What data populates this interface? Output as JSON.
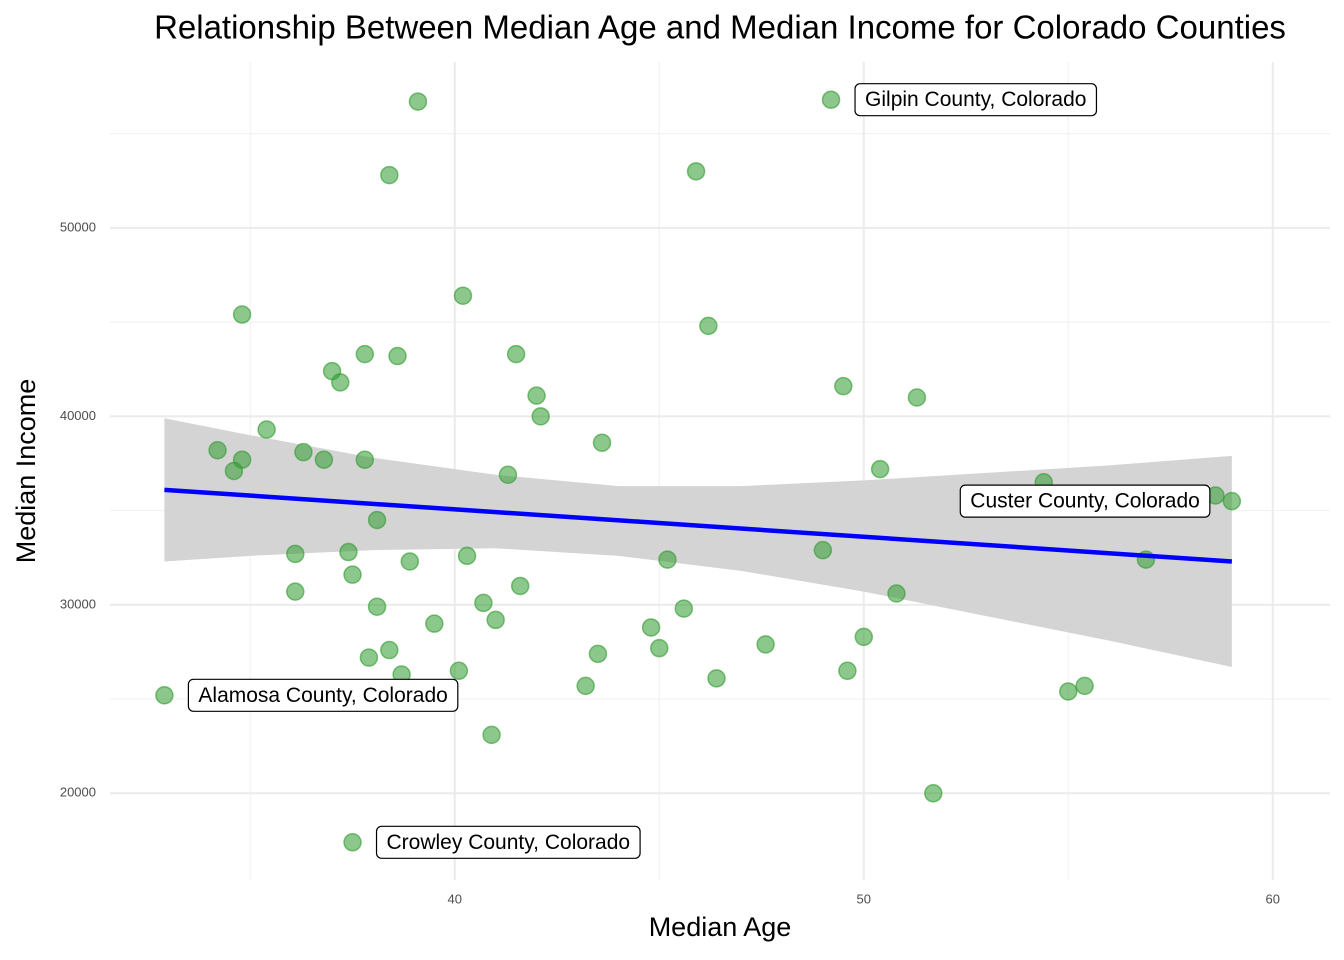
{
  "chart_data": {
    "type": "scatter",
    "title": "Relationship Between Median Age and Median Income for Colorado Counties",
    "x_label": "Median Age",
    "y_label": "Median Income",
    "xlim": [
      31.57,
      61.4
    ],
    "ylim": [
      15400,
      58800
    ],
    "xticks": [
      40,
      50,
      60
    ],
    "yticks": [
      20000,
      30000,
      40000,
      50000
    ],
    "x_minor_grid": [
      35,
      45,
      55
    ],
    "y_minor_grid": [
      25000,
      35000,
      45000,
      55000
    ],
    "grid": true,
    "color": "#2e9a2e",
    "x": [
      32.9,
      39.1,
      49.2,
      38.4,
      45.9,
      40.2,
      34.8,
      46.2,
      37.8,
      38.6,
      41.5,
      37.0,
      37.2,
      49.5,
      42.0,
      51.3,
      42.1,
      35.4,
      43.6,
      34.2,
      36.3,
      34.8,
      34.6,
      36.8,
      37.8,
      41.3,
      50.4,
      54.4,
      58.6,
      59.0,
      38.1,
      36.1,
      37.4,
      40.3,
      38.9,
      45.2,
      49.0,
      56.9,
      37.5,
      36.1,
      41.6,
      50.8,
      38.1,
      40.7,
      45.6,
      41.0,
      39.5,
      44.8,
      50.0,
      47.6,
      45.0,
      38.4,
      43.5,
      37.9,
      49.6,
      40.1,
      38.7,
      46.4,
      43.2,
      55.4,
      55.0,
      40.9,
      51.7,
      37.5
    ],
    "values": [
      25200,
      56700,
      56800,
      52800,
      53000,
      46400,
      45400,
      44800,
      43300,
      43200,
      43300,
      42400,
      41800,
      41600,
      41100,
      41000,
      40000,
      39300,
      38600,
      38200,
      38100,
      37700,
      37100,
      37700,
      37700,
      36900,
      37200,
      36500,
      35800,
      35500,
      34500,
      32700,
      32800,
      32600,
      32300,
      32400,
      32900,
      32400,
      31600,
      30700,
      31000,
      30600,
      29900,
      30100,
      29800,
      29200,
      29000,
      28800,
      28300,
      27900,
      27700,
      27600,
      27400,
      27200,
      26500,
      26500,
      26300,
      26100,
      25700,
      25700,
      25400,
      23100,
      20000,
      17400
    ],
    "point_labels": [
      "Alamosa County, Colorado",
      null,
      "Gilpin County, Colorado",
      null,
      null,
      null,
      null,
      null,
      null,
      null,
      null,
      null,
      null,
      null,
      null,
      null,
      null,
      null,
      null,
      null,
      null,
      null,
      null,
      null,
      null,
      null,
      null,
      null,
      null,
      "Custer County, Colorado",
      null,
      null,
      null,
      null,
      null,
      null,
      null,
      null,
      null,
      null,
      null,
      null,
      null,
      null,
      null,
      null,
      null,
      null,
      null,
      null,
      null,
      null,
      null,
      null,
      null,
      null,
      null,
      null,
      null,
      null,
      null,
      null,
      null,
      "Crowley County, Colorado"
    ],
    "fit": {
      "color": "#0000ff",
      "x": [
        32.9,
        59.0
      ],
      "values": [
        36100,
        32300
      ]
    },
    "band": {
      "color": "#d4d4d4",
      "x": [
        32.9,
        35,
        38,
        41,
        44,
        47,
        50,
        53,
        56,
        59
      ],
      "upper": [
        39900,
        39000,
        37800,
        36900,
        36300,
        36300,
        36600,
        37000,
        37400,
        37900
      ],
      "lower": [
        32300,
        32600,
        32900,
        33000,
        32600,
        31800,
        30700,
        29400,
        28100,
        26700
      ]
    }
  }
}
